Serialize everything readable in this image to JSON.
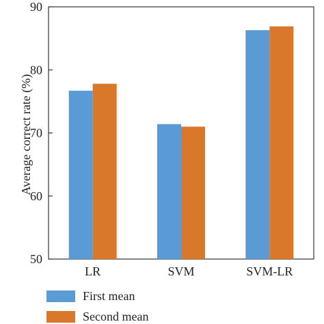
{
  "chart_data": {
    "type": "bar",
    "title": "",
    "xlabel": "",
    "ylabel": "Average correct rate (%)",
    "ylim": [
      50,
      90
    ],
    "yticks": [
      50,
      60,
      70,
      80,
      90
    ],
    "categories": [
      "LR",
      "SVM",
      "SVM-LR"
    ],
    "series": [
      {
        "name": "First mean",
        "color": "#5b9bd5",
        "values": [
          76.7,
          71.4,
          86.3
        ]
      },
      {
        "name": "Second mean",
        "color": "#d9782b",
        "values": [
          77.8,
          71.0,
          86.9
        ]
      }
    ],
    "grid": false,
    "legend_position": "bottom-left"
  }
}
